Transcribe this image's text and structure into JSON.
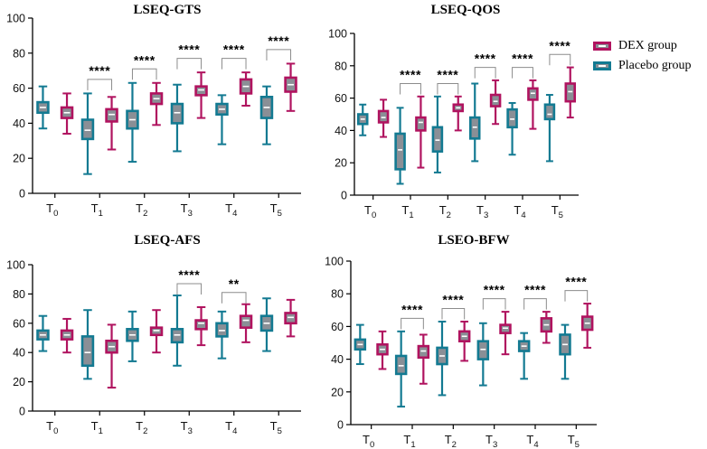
{
  "colors": {
    "dex": "#b0135f",
    "placebo": "#137a92",
    "box_fill": "#8a8f96",
    "median": "#ffffff",
    "bracket": "#8c8c8c"
  },
  "legend": [
    {
      "key": "dex",
      "label": "DEX group"
    },
    {
      "key": "placebo",
      "label": "Placebo group"
    }
  ],
  "chart_data": [
    {
      "type": "box",
      "title": "LSEQ-GTS",
      "ylim": [
        0,
        100
      ],
      "yticks": [
        0,
        20,
        40,
        60,
        80,
        100
      ],
      "categories": [
        {
          "base": "T",
          "sub": "0"
        },
        {
          "base": "T",
          "sub": "1"
        },
        {
          "base": "T",
          "sub": "2"
        },
        {
          "base": "T",
          "sub": "3"
        },
        {
          "base": "T",
          "sub": "4"
        },
        {
          "base": "T",
          "sub": "5"
        }
      ],
      "series": [
        {
          "name": "Placebo group",
          "key": "placebo",
          "boxes": [
            {
              "min": 37,
              "q1": 46,
              "median": 49,
              "q3": 52,
              "max": 61
            },
            {
              "min": 11,
              "q1": 31,
              "median": 36,
              "q3": 42,
              "max": 57
            },
            {
              "min": 18,
              "q1": 37,
              "median": 42,
              "q3": 47,
              "max": 63
            },
            {
              "min": 24,
              "q1": 40,
              "median": 46,
              "q3": 51,
              "max": 62
            },
            {
              "min": 28,
              "q1": 45,
              "median": 48,
              "q3": 51,
              "max": 56
            },
            {
              "min": 28,
              "q1": 43,
              "median": 49,
              "q3": 55,
              "max": 61
            }
          ]
        },
        {
          "name": "DEX group",
          "key": "dex",
          "boxes": [
            {
              "min": 34,
              "q1": 43,
              "median": 46,
              "q3": 49,
              "max": 57
            },
            {
              "min": 25,
              "q1": 41,
              "median": 45,
              "q3": 48,
              "max": 55
            },
            {
              "min": 39,
              "q1": 51,
              "median": 54,
              "q3": 57,
              "max": 63
            },
            {
              "min": 43,
              "q1": 56,
              "median": 59,
              "q3": 61,
              "max": 69
            },
            {
              "min": 50,
              "q1": 57,
              "median": 61,
              "q3": 65,
              "max": 69
            },
            {
              "min": 47,
              "q1": 58,
              "median": 62,
              "q3": 66,
              "max": 74
            }
          ]
        }
      ],
      "significance": [
        "",
        "****",
        "****",
        "****",
        "****",
        "****"
      ]
    },
    {
      "type": "box",
      "title": "LSEQ-QOS",
      "ylim": [
        0,
        100
      ],
      "yticks": [
        0,
        20,
        40,
        60,
        80,
        100
      ],
      "categories": [
        {
          "base": "T",
          "sub": "0"
        },
        {
          "base": "T",
          "sub": "1"
        },
        {
          "base": "T",
          "sub": "2"
        },
        {
          "base": "T",
          "sub": "3"
        },
        {
          "base": "T",
          "sub": "4"
        },
        {
          "base": "T",
          "sub": "5"
        }
      ],
      "series": [
        {
          "name": "Placebo group",
          "key": "placebo",
          "boxes": [
            {
              "min": 37,
              "q1": 44,
              "median": 47,
              "q3": 50,
              "max": 56
            },
            {
              "min": 7,
              "q1": 16,
              "median": 28,
              "q3": 38,
              "max": 54
            },
            {
              "min": 14,
              "q1": 27,
              "median": 34,
              "q3": 42,
              "max": 61
            },
            {
              "min": 21,
              "q1": 35,
              "median": 42,
              "q3": 48,
              "max": 69
            },
            {
              "min": 25,
              "q1": 42,
              "median": 47,
              "q3": 53,
              "max": 57
            },
            {
              "min": 21,
              "q1": 47,
              "median": 50,
              "q3": 56,
              "max": 62
            }
          ]
        },
        {
          "name": "DEX group",
          "key": "dex",
          "boxes": [
            {
              "min": 36,
              "q1": 45,
              "median": 48,
              "q3": 52,
              "max": 59
            },
            {
              "min": 17,
              "q1": 40,
              "median": 45,
              "q3": 48,
              "max": 61
            },
            {
              "min": 40,
              "q1": 52,
              "median": 54,
              "q3": 56,
              "max": 61
            },
            {
              "min": 44,
              "q1": 55,
              "median": 58,
              "q3": 62,
              "max": 71
            },
            {
              "min": 41,
              "q1": 59,
              "median": 63,
              "q3": 66,
              "max": 71
            },
            {
              "min": 48,
              "q1": 58,
              "median": 64,
              "q3": 69,
              "max": 79
            }
          ]
        }
      ],
      "significance": [
        "",
        "****",
        "****",
        "****",
        "****",
        "****"
      ]
    },
    {
      "type": "box",
      "title": "LSEQ-AFS",
      "ylim": [
        0,
        100
      ],
      "yticks": [
        0,
        20,
        40,
        60,
        80,
        100
      ],
      "categories": [
        {
          "base": "T",
          "sub": "0"
        },
        {
          "base": "T",
          "sub": "1"
        },
        {
          "base": "T",
          "sub": "2"
        },
        {
          "base": "T",
          "sub": "3"
        },
        {
          "base": "T",
          "sub": "4"
        },
        {
          "base": "T",
          "sub": "5"
        }
      ],
      "series": [
        {
          "name": "Placebo group",
          "key": "placebo",
          "boxes": [
            {
              "min": 41,
              "q1": 49,
              "median": 52,
              "q3": 55,
              "max": 65
            },
            {
              "min": 22,
              "q1": 31,
              "median": 40,
              "q3": 51,
              "max": 69
            },
            {
              "min": 34,
              "q1": 48,
              "median": 52,
              "q3": 56,
              "max": 68
            },
            {
              "min": 31,
              "q1": 47,
              "median": 52,
              "q3": 56,
              "max": 79
            },
            {
              "min": 36,
              "q1": 51,
              "median": 55,
              "q3": 60,
              "max": 68
            },
            {
              "min": 41,
              "q1": 55,
              "median": 60,
              "q3": 65,
              "max": 77
            }
          ]
        },
        {
          "name": "DEX group",
          "key": "dex",
          "boxes": [
            {
              "min": 40,
              "q1": 49,
              "median": 52,
              "q3": 55,
              "max": 63
            },
            {
              "min": 16,
              "q1": 40,
              "median": 44,
              "q3": 48,
              "max": 59
            },
            {
              "min": 40,
              "q1": 52,
              "median": 55,
              "q3": 57,
              "max": 69
            },
            {
              "min": 45,
              "q1": 56,
              "median": 60,
              "q3": 62,
              "max": 71
            },
            {
              "min": 47,
              "q1": 57,
              "median": 62,
              "q3": 65,
              "max": 73
            },
            {
              "min": 51,
              "q1": 60,
              "median": 64,
              "q3": 67,
              "max": 76
            }
          ]
        }
      ],
      "significance": [
        "",
        "",
        "",
        "****",
        "**",
        ""
      ]
    },
    {
      "type": "box",
      "title": "LSEO-BFW",
      "ylim": [
        0,
        100
      ],
      "yticks": [
        0,
        20,
        40,
        60,
        80,
        100
      ],
      "categories": [
        {
          "base": "T",
          "sub": "0"
        },
        {
          "base": "T",
          "sub": "1"
        },
        {
          "base": "T",
          "sub": "2"
        },
        {
          "base": "T",
          "sub": "3"
        },
        {
          "base": "T",
          "sub": "4"
        },
        {
          "base": "T",
          "sub": "5"
        }
      ],
      "series": [
        {
          "name": "Placebo group",
          "key": "placebo",
          "boxes": [
            {
              "min": 37,
              "q1": 46,
              "median": 49,
              "q3": 52,
              "max": 61
            },
            {
              "min": 11,
              "q1": 31,
              "median": 36,
              "q3": 42,
              "max": 57
            },
            {
              "min": 18,
              "q1": 37,
              "median": 42,
              "q3": 47,
              "max": 63
            },
            {
              "min": 24,
              "q1": 40,
              "median": 46,
              "q3": 51,
              "max": 62
            },
            {
              "min": 28,
              "q1": 45,
              "median": 48,
              "q3": 51,
              "max": 56
            },
            {
              "min": 28,
              "q1": 43,
              "median": 49,
              "q3": 55,
              "max": 61
            }
          ]
        },
        {
          "name": "DEX group",
          "key": "dex",
          "boxes": [
            {
              "min": 34,
              "q1": 43,
              "median": 46,
              "q3": 49,
              "max": 57
            },
            {
              "min": 25,
              "q1": 41,
              "median": 45,
              "q3": 48,
              "max": 55
            },
            {
              "min": 39,
              "q1": 51,
              "median": 54,
              "q3": 57,
              "max": 63
            },
            {
              "min": 43,
              "q1": 56,
              "median": 59,
              "q3": 61,
              "max": 69
            },
            {
              "min": 50,
              "q1": 57,
              "median": 61,
              "q3": 65,
              "max": 69
            },
            {
              "min": 47,
              "q1": 58,
              "median": 62,
              "q3": 66,
              "max": 74
            }
          ]
        }
      ],
      "significance": [
        "",
        "****",
        "****",
        "****",
        "****",
        "****"
      ]
    }
  ]
}
